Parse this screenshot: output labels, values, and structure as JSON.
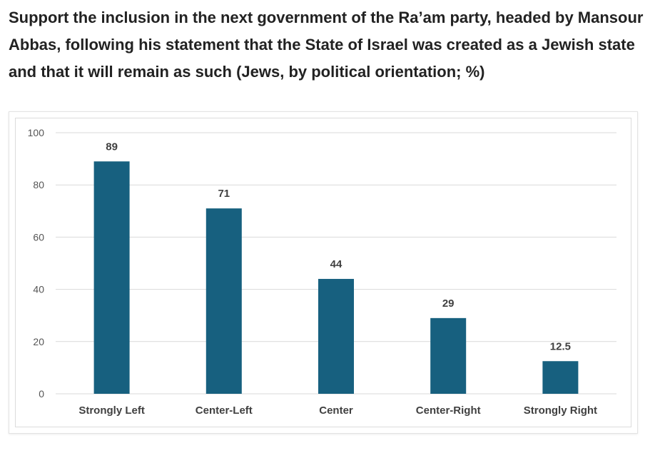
{
  "title": "Support the inclusion in the next government of the Ra’am party, headed by Mansour Abbas, following his statement that the State of Israel was created as a Jewish state and that it will remain as such (Jews, by political orientation; %)",
  "chart_data": {
    "type": "bar",
    "title": "",
    "xlabel": "",
    "ylabel": "",
    "categories": [
      "Strongly Left",
      "Center-Left",
      "Center",
      "Center-Right",
      "Strongly Right"
    ],
    "values": [
      89,
      71,
      44,
      29,
      12.5
    ],
    "data_labels": [
      "89",
      "71",
      "44",
      "29",
      "12.5"
    ],
    "ylim": [
      0,
      100
    ],
    "yticks": [
      0,
      20,
      40,
      60,
      80,
      100
    ],
    "grid": true,
    "legend": "none",
    "bar_color": "#17607f",
    "grid_color": "#d9d9d9"
  }
}
